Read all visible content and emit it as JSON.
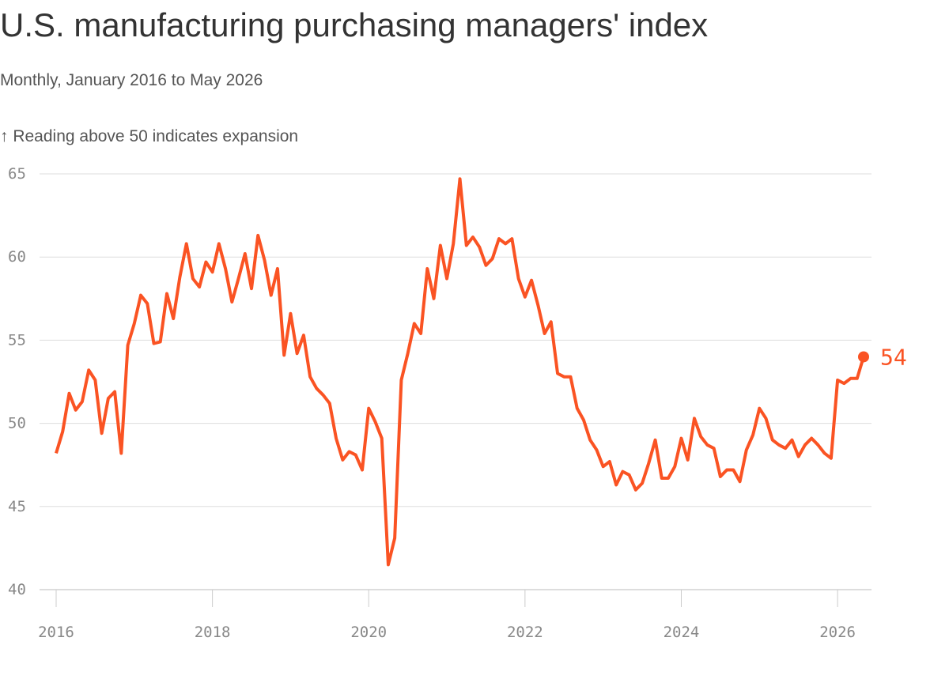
{
  "chart_data": {
    "type": "line",
    "title": "U.S. manufacturing purchasing managers' index",
    "subtitle": "Monthly, January 2016 to May 2026",
    "annotation": "↑ Reading above 50 indicates expansion",
    "x": [
      2016,
      2016.083,
      2016.167,
      2016.25,
      2016.333,
      2016.417,
      2016.5,
      2016.583,
      2016.667,
      2016.75,
      2016.833,
      2016.917,
      2017,
      2017.083,
      2017.167,
      2017.25,
      2017.333,
      2017.417,
      2017.5,
      2017.583,
      2017.667,
      2017.75,
      2017.833,
      2017.917,
      2018,
      2018.083,
      2018.167,
      2018.25,
      2018.333,
      2018.417,
      2018.5,
      2018.583,
      2018.667,
      2018.75,
      2018.833,
      2018.917,
      2019,
      2019.083,
      2019.167,
      2019.25,
      2019.333,
      2019.417,
      2019.5,
      2019.583,
      2019.667,
      2019.75,
      2019.833,
      2019.917,
      2020,
      2020.083,
      2020.167,
      2020.25,
      2020.333,
      2020.417,
      2020.5,
      2020.583,
      2020.667,
      2020.75,
      2020.833,
      2020.917,
      2021,
      2021.083,
      2021.167,
      2021.25,
      2021.333,
      2021.417,
      2021.5,
      2021.583,
      2021.667,
      2021.75,
      2021.833,
      2021.917,
      2022,
      2022.083,
      2022.167,
      2022.25,
      2022.333,
      2022.417,
      2022.5,
      2022.583,
      2022.667,
      2022.75,
      2022.833,
      2022.917,
      2023,
      2023.083,
      2023.167,
      2023.25,
      2023.333,
      2023.417,
      2023.5,
      2023.583,
      2023.667,
      2023.75,
      2023.833,
      2023.917,
      2024,
      2024.083,
      2024.167,
      2024.25,
      2024.333,
      2024.417,
      2024.5,
      2024.583,
      2024.667,
      2024.75,
      2024.833,
      2024.917,
      2025,
      2025.083,
      2025.167,
      2025.25,
      2025.333,
      2025.417,
      2025.5,
      2025.583,
      2025.667,
      2025.75,
      2025.833,
      2025.917,
      2026,
      2026.083,
      2026.167,
      2026.25,
      2026.333
    ],
    "series": [
      {
        "color": "#fa5323",
        "values": [
          48.2,
          49.5,
          51.8,
          50.8,
          51.3,
          53.2,
          52.6,
          49.4,
          51.5,
          51.9,
          48.2,
          54.7,
          56.0,
          57.7,
          57.2,
          54.8,
          54.9,
          57.8,
          56.3,
          58.8,
          60.8,
          58.7,
          58.2,
          59.7,
          59.1,
          60.8,
          59.3,
          57.3,
          58.7,
          60.2,
          58.1,
          61.3,
          59.8,
          57.7,
          59.3,
          54.1,
          56.6,
          54.2,
          55.3,
          52.8,
          52.1,
          51.7,
          51.2,
          49.1,
          47.8,
          48.3,
          48.1,
          47.2,
          50.9,
          50.1,
          49.1,
          41.5,
          43.1,
          52.6,
          54.2,
          56.0,
          55.4,
          59.3,
          57.5,
          60.7,
          58.7,
          60.8,
          64.7,
          60.7,
          61.2,
          60.6,
          59.5,
          59.9,
          61.1,
          60.8,
          61.1,
          58.7,
          57.6,
          58.6,
          57.1,
          55.4,
          56.1,
          53.0,
          52.8,
          52.8,
          50.9,
          50.2,
          49.0,
          48.4,
          47.4,
          47.7,
          46.3,
          47.1,
          46.9,
          46.0,
          46.4,
          47.6,
          49.0,
          46.7,
          46.7,
          47.4,
          49.1,
          47.8,
          50.3,
          49.2,
          48.7,
          48.5,
          46.8,
          47.2,
          47.2,
          46.5,
          48.4,
          49.3,
          50.9,
          50.3,
          49.0,
          48.7,
          48.5,
          49.0,
          48.0,
          48.7,
          49.1,
          48.7,
          48.2,
          47.9,
          52.6,
          52.4,
          52.7,
          52.7,
          54
        ]
      }
    ],
    "xlim": [
      2016,
      2026.333
    ],
    "xticks": [
      2016,
      2018,
      2020,
      2022,
      2024,
      2026
    ],
    "ylim": [
      40,
      65
    ],
    "yticks": [
      40,
      45,
      50,
      55,
      60,
      65
    ],
    "grid": true
  }
}
